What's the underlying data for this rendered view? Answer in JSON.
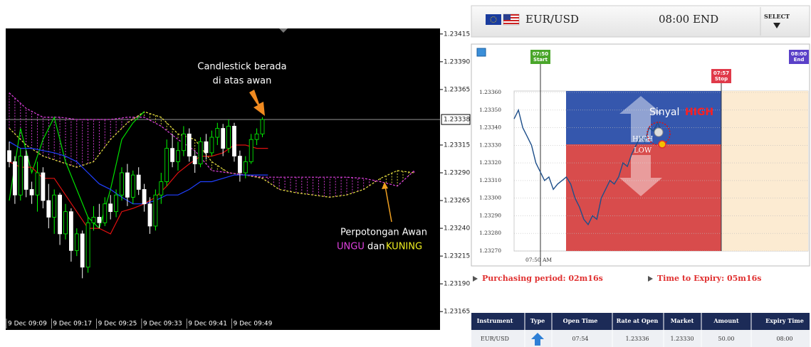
{
  "left_chart": {
    "ylim": [
      1.2316,
      1.2342
    ],
    "yticks": [
      1.23415,
      1.2339,
      1.23365,
      1.23315,
      1.2329,
      1.23265,
      1.2324,
      1.23215,
      1.2319,
      1.23165
    ],
    "ytick_labels": [
      "1.23415",
      "1.23390",
      "1.23365",
      "1.23315",
      "1.23290",
      "1.23265",
      "1.23240",
      "1.23215",
      "1.23190",
      "1.23165"
    ],
    "current_price": 1.23338,
    "current_price_label": "1.23338",
    "xtick_labels": [
      "9 Dec 09:09",
      "9 Dec 09:17",
      "9 Dec 09:25",
      "9 Dec 09:33",
      "9 Dec 09:41",
      "9 Dec 09:49"
    ],
    "candles": [
      [
        1.2331,
        1.23318,
        1.23295,
        1.233
      ],
      [
        1.233,
        1.23305,
        1.23262,
        1.2327
      ],
      [
        1.2327,
        1.23312,
        1.23265,
        1.23305
      ],
      [
        1.23305,
        1.2331,
        1.23268,
        1.23275
      ],
      [
        1.23275,
        1.23282,
        1.23262,
        1.2327
      ],
      [
        1.2327,
        1.233,
        1.23255,
        1.2329
      ],
      [
        1.2329,
        1.23295,
        1.23258,
        1.23265
      ],
      [
        1.23265,
        1.2328,
        1.2324,
        1.2325
      ],
      [
        1.2325,
        1.23275,
        1.23235,
        1.2327
      ],
      [
        1.2327,
        1.23272,
        1.23225,
        1.23235
      ],
      [
        1.23235,
        1.23262,
        1.2323,
        1.23255
      ],
      [
        1.23255,
        1.23258,
        1.2321,
        1.2322
      ],
      [
        1.2322,
        1.2324,
        1.23215,
        1.23235
      ],
      [
        1.23235,
        1.23238,
        1.23195,
        1.23205
      ],
      [
        1.23205,
        1.2325,
        1.232,
        1.23245
      ],
      [
        1.23245,
        1.2326,
        1.23238,
        1.2325
      ],
      [
        1.2325,
        1.23262,
        1.2324,
        1.23245
      ],
      [
        1.23245,
        1.23268,
        1.23242,
        1.23262
      ],
      [
        1.23262,
        1.2327,
        1.23248,
        1.23255
      ],
      [
        1.23255,
        1.23275,
        1.2325,
        1.2327
      ],
      [
        1.2327,
        1.23295,
        1.23265,
        1.2329
      ],
      [
        1.2329,
        1.23298,
        1.2326,
        1.23268
      ],
      [
        1.23268,
        1.23292,
        1.23262,
        1.23288
      ],
      [
        1.23288,
        1.23295,
        1.2327,
        1.23275
      ],
      [
        1.23275,
        1.2328,
        1.23255,
        1.23262
      ],
      [
        1.23262,
        1.23268,
        1.23235,
        1.23242
      ],
      [
        1.23242,
        1.23275,
        1.23238,
        1.2327
      ],
      [
        1.2327,
        1.2329,
        1.23262,
        1.23282
      ],
      [
        1.23282,
        1.2332,
        1.23278,
        1.23312
      ],
      [
        1.23312,
        1.23325,
        1.23295,
        1.233
      ],
      [
        1.233,
        1.23318,
        1.23292,
        1.2331
      ],
      [
        1.2331,
        1.23332,
        1.23305,
        1.23325
      ],
      [
        1.23325,
        1.2333,
        1.233,
        1.23305
      ],
      [
        1.23305,
        1.2331,
        1.2329,
        1.23298
      ],
      [
        1.23298,
        1.23322,
        1.23295,
        1.23318
      ],
      [
        1.23318,
        1.23325,
        1.23302,
        1.23308
      ],
      [
        1.23308,
        1.23328,
        1.23305,
        1.23322
      ],
      [
        1.23322,
        1.23335,
        1.23315,
        1.2333
      ],
      [
        1.2333,
        1.23334,
        1.23305,
        1.23312
      ],
      [
        1.23312,
        1.23338,
        1.23308,
        1.23332
      ],
      [
        1.23332,
        1.23335,
        1.233,
        1.23305
      ],
      [
        1.23305,
        1.2331,
        1.23282,
        1.2329
      ],
      [
        1.2329,
        1.23305,
        1.23285,
        1.233
      ],
      [
        1.233,
        1.23325,
        1.23298,
        1.2332
      ],
      [
        1.2332,
        1.2333,
        1.23315,
        1.23325
      ],
      [
        1.23325,
        1.2334,
        1.23322,
        1.23338
      ]
    ],
    "span_a": [
      1.2333,
      1.23315,
      1.23305,
      1.233,
      1.23295,
      1.233,
      1.2332,
      1.23335,
      1.23345,
      1.2334,
      1.23325,
      1.2332,
      1.233,
      1.2329,
      1.23288,
      1.23285,
      1.23275,
      1.23272,
      1.2327,
      1.23268,
      1.2327,
      1.23275,
      1.23285,
      1.23292,
      1.2329
    ],
    "span_b": [
      1.23362,
      1.23348,
      1.2334,
      1.2334,
      1.23338,
      1.23338,
      1.23338,
      1.2334,
      1.2334,
      1.23332,
      1.2332,
      1.2331,
      1.23292,
      1.2329,
      1.23288,
      1.23286,
      1.23286,
      1.23286,
      1.23286,
      1.23286,
      1.23286,
      1.23285,
      1.23282,
      1.23278,
      1.23292
    ],
    "tenkan": [
      1.233,
      1.23295,
      1.23295,
      1.23285,
      1.23285,
      1.2327,
      1.23255,
      1.2324,
      1.2324,
      1.23235,
      1.23255,
      1.23258,
      1.23262,
      1.23268,
      1.23278,
      1.2329,
      1.23298,
      1.23305,
      1.23305,
      1.23308,
      1.23315,
      1.23315,
      1.23312,
      1.23312
    ],
    "kijun": [
      1.23318,
      1.23312,
      1.23312,
      1.2331,
      1.23308,
      1.23305,
      1.233,
      1.2329,
      1.2328,
      1.23275,
      1.23268,
      1.23262,
      1.23262,
      1.23265,
      1.2327,
      1.2327,
      1.23275,
      1.23282,
      1.23282,
      1.23285,
      1.23288,
      1.23288,
      1.23288,
      1.23288
    ],
    "chikou": [
      1.23265,
      1.2333,
      1.2329,
      1.2332,
      1.2334,
      1.233,
      1.23275,
      1.2325,
      1.2324,
      1.23275,
      1.2332,
      1.23335,
      1.23345
    ],
    "annotation_top": [
      "Candlestick berada",
      "di atas awan"
    ],
    "annotation_bottom": {
      "line1": "Perpotongan Awan",
      "purple": "UNGU",
      "and": "dan",
      "yellow": "KUNING"
    }
  },
  "right_panel": {
    "header": {
      "pair": "EUR/USD",
      "time": "08:00 END",
      "select": "SELECT"
    },
    "chart": {
      "ylim": [
        1.2327,
        1.2336
      ],
      "yticks": [
        {
          "value": 1.2336,
          "label": "1.23360"
        },
        {
          "value": 1.2335,
          "label": "1.23350"
        },
        {
          "value": 1.2334,
          "label": "1.23340"
        },
        {
          "value": 1.2333,
          "label": "1.23330"
        },
        {
          "value": 1.2332,
          "label": "1.23320"
        },
        {
          "value": 1.2331,
          "label": "1.23310"
        },
        {
          "value": 1.233,
          "label": "1.23300"
        },
        {
          "value": 1.2329,
          "label": "1.23290"
        },
        {
          "value": 1.2328,
          "label": "1.23280"
        },
        {
          "value": 1.2327,
          "label": "1.23270"
        }
      ],
      "x_label": "07:50 AM",
      "start": {
        "time": "07:50",
        "label": "Start"
      },
      "stop": {
        "time": "07:57",
        "label": "Stop"
      },
      "end": {
        "time": "08:00",
        "label": "End"
      },
      "signal": {
        "text": "Sinyal",
        "word": "HIGH"
      },
      "high": "HIGH",
      "low": "LOW",
      "price": [
        1.23345,
        1.2335,
        1.2334,
        1.23335,
        1.2333,
        1.2332,
        1.23315,
        1.2331,
        1.23312,
        1.23305,
        1.23308,
        1.2331,
        1.23312,
        1.23308,
        1.233,
        1.23295,
        1.23288,
        1.23285,
        1.2329,
        1.23288,
        1.233,
        1.23305,
        1.2331,
        1.23308,
        1.23312,
        1.2332,
        1.23318,
        1.23325,
        1.2333,
        1.23335,
        1.23332,
        1.2334,
        1.23338,
        1.23343,
        1.23336
      ]
    },
    "purchasing": "Purchasing period: 02m16s",
    "expiry": "Time to Expiry: 05m16s",
    "table": {
      "headers": [
        "Instrument",
        "Type",
        "Open Time",
        "Rate at Open",
        "Market",
        "Amount",
        "Expiry Time"
      ],
      "rows": [
        [
          "EUR/USD",
          "",
          "07:54",
          "1.23336",
          "1.23330",
          "50.00",
          "08:00"
        ]
      ]
    }
  }
}
